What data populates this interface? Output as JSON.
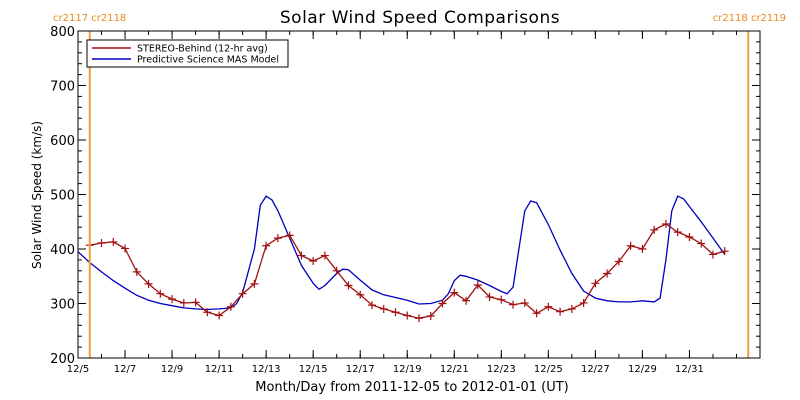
{
  "chart_data": {
    "type": "line",
    "title": "Solar Wind Speed Comparisons",
    "xlabel": "Month/Day from 2011-12-05 to 2012-01-01 (UT)",
    "ylabel": "Solar Wind Speed (km/s)",
    "ylim": [
      200,
      800
    ],
    "yticks": [
      200,
      300,
      400,
      500,
      600,
      700,
      800
    ],
    "xlim": [
      "2011-12-05",
      "2012-01-03"
    ],
    "xticks": [
      {
        "date": "2011-12-05",
        "label": "12/5"
      },
      {
        "date": "2011-12-07",
        "label": "12/7"
      },
      {
        "date": "2011-12-09",
        "label": "12/9"
      },
      {
        "date": "2011-12-11",
        "label": "12/11"
      },
      {
        "date": "2011-12-13",
        "label": "12/13"
      },
      {
        "date": "2011-12-15",
        "label": "12/15"
      },
      {
        "date": "2011-12-17",
        "label": "12/17"
      },
      {
        "date": "2011-12-19",
        "label": "12/19"
      },
      {
        "date": "2011-12-21",
        "label": "12/21"
      },
      {
        "date": "2011-12-23",
        "label": "12/23"
      },
      {
        "date": "2011-12-25",
        "label": "12/25"
      },
      {
        "date": "2011-12-27",
        "label": "12/27"
      },
      {
        "date": "2011-12-29",
        "label": "12/29"
      },
      {
        "date": "2011-12-31",
        "label": "12/31"
      }
    ],
    "grid": false,
    "legend_position": "top-left",
    "markers": [
      {
        "date": "2011-12-05 12:00",
        "label": "cr2117 cr2118",
        "label_side": "left",
        "color": "#f0a030"
      },
      {
        "date": "2012-01-02 12:00",
        "label": "cr2118 cr2119",
        "label_side": "right",
        "color": "#f0a030"
      }
    ],
    "series": [
      {
        "name": "STEREO-Behind (12-hr avg)",
        "color": "#a01010",
        "marker": "+",
        "points": [
          [
            "2011-12-05 12:00",
            407
          ],
          [
            "2011-12-06 00:00",
            411
          ],
          [
            "2011-12-06 12:00",
            413
          ],
          [
            "2011-12-07 00:00",
            401
          ],
          [
            "2011-12-07 12:00",
            358
          ],
          [
            "2011-12-08 00:00",
            336
          ],
          [
            "2011-12-08 12:00",
            318
          ],
          [
            "2011-12-09 00:00",
            308
          ],
          [
            "2011-12-09 12:00",
            301
          ],
          [
            "2011-12-10 00:00",
            302
          ],
          [
            "2011-12-10 12:00",
            284
          ],
          [
            "2011-12-11 00:00",
            278
          ],
          [
            "2011-12-11 12:00",
            294
          ],
          [
            "2011-12-12 00:00",
            318
          ],
          [
            "2011-12-12 12:00",
            336
          ],
          [
            "2011-12-13 00:00",
            406
          ],
          [
            "2011-12-13 12:00",
            420
          ],
          [
            "2011-12-14 00:00",
            425
          ],
          [
            "2011-12-14 12:00",
            388
          ],
          [
            "2011-12-15 00:00",
            378
          ],
          [
            "2011-12-15 12:00",
            388
          ],
          [
            "2011-12-16 00:00",
            360
          ],
          [
            "2011-12-16 12:00",
            333
          ],
          [
            "2011-12-17 00:00",
            316
          ],
          [
            "2011-12-17 12:00",
            297
          ],
          [
            "2011-12-18 00:00",
            290
          ],
          [
            "2011-12-18 12:00",
            284
          ],
          [
            "2011-12-19 00:00",
            278
          ],
          [
            "2011-12-19 12:00",
            273
          ],
          [
            "2011-12-20 00:00",
            277
          ],
          [
            "2011-12-20 12:00",
            300
          ],
          [
            "2011-12-21 00:00",
            320
          ],
          [
            "2011-12-21 12:00",
            305
          ],
          [
            "2011-12-22 00:00",
            334
          ],
          [
            "2011-12-22 12:00",
            312
          ],
          [
            "2011-12-23 00:00",
            307
          ],
          [
            "2011-12-23 12:00",
            298
          ],
          [
            "2011-12-24 00:00",
            301
          ],
          [
            "2011-12-24 12:00",
            282
          ],
          [
            "2011-12-25 00:00",
            294
          ],
          [
            "2011-12-25 12:00",
            285
          ],
          [
            "2011-12-26 00:00",
            290
          ],
          [
            "2011-12-26 12:00",
            301
          ],
          [
            "2011-12-27 00:00",
            337
          ],
          [
            "2011-12-27 12:00",
            355
          ],
          [
            "2011-12-28 00:00",
            377
          ],
          [
            "2011-12-28 12:00",
            406
          ],
          [
            "2011-12-29 00:00",
            400
          ],
          [
            "2011-12-29 12:00",
            435
          ],
          [
            "2011-12-30 00:00",
            446
          ],
          [
            "2011-12-30 12:00",
            431
          ],
          [
            "2011-12-31 00:00",
            422
          ],
          [
            "2011-12-31 12:00",
            410
          ],
          [
            "2012-01-01 00:00",
            390
          ],
          [
            "2012-01-01 12:00",
            396
          ]
        ]
      },
      {
        "name": "Predictive Science MAS Model",
        "color": "#0000c0",
        "marker": "none",
        "points": [
          [
            "2011-12-05 00:00",
            395
          ],
          [
            "2011-12-05 12:00",
            375
          ],
          [
            "2011-12-06 00:00",
            358
          ],
          [
            "2011-12-06 12:00",
            342
          ],
          [
            "2011-12-07 00:00",
            328
          ],
          [
            "2011-12-07 12:00",
            315
          ],
          [
            "2011-12-08 00:00",
            306
          ],
          [
            "2011-12-08 12:00",
            300
          ],
          [
            "2011-12-09 00:00",
            296
          ],
          [
            "2011-12-09 12:00",
            292
          ],
          [
            "2011-12-10 00:00",
            290
          ],
          [
            "2011-12-10 12:00",
            289
          ],
          [
            "2011-12-11 00:00",
            290
          ],
          [
            "2011-12-11 12:00",
            292
          ],
          [
            "2011-12-11 18:00",
            300
          ],
          [
            "2011-12-12 00:00",
            320
          ],
          [
            "2011-12-12 12:00",
            400
          ],
          [
            "2011-12-12 18:00",
            480
          ],
          [
            "2011-12-13 00:00",
            497
          ],
          [
            "2011-12-13 06:00",
            490
          ],
          [
            "2011-12-13 12:00",
            470
          ],
          [
            "2011-12-14 00:00",
            420
          ],
          [
            "2011-12-14 12:00",
            370
          ],
          [
            "2011-12-15 00:00",
            337
          ],
          [
            "2011-12-15 06:00",
            326
          ],
          [
            "2011-12-15 12:00",
            333
          ],
          [
            "2011-12-16 00:00",
            355
          ],
          [
            "2011-12-16 06:00",
            363
          ],
          [
            "2011-12-16 12:00",
            362
          ],
          [
            "2011-12-17 00:00",
            343
          ],
          [
            "2011-12-17 12:00",
            325
          ],
          [
            "2011-12-18 00:00",
            316
          ],
          [
            "2011-12-18 12:00",
            311
          ],
          [
            "2011-12-19 00:00",
            306
          ],
          [
            "2011-12-19 12:00",
            299
          ],
          [
            "2011-12-20 00:00",
            300
          ],
          [
            "2011-12-20 12:00",
            306
          ],
          [
            "2011-12-20 18:00",
            318
          ],
          [
            "2011-12-21 00:00",
            342
          ],
          [
            "2011-12-21 06:00",
            352
          ],
          [
            "2011-12-21 12:00",
            350
          ],
          [
            "2011-12-22 00:00",
            343
          ],
          [
            "2011-12-22 12:00",
            333
          ],
          [
            "2011-12-23 00:00",
            322
          ],
          [
            "2011-12-23 06:00",
            318
          ],
          [
            "2011-12-23 12:00",
            330
          ],
          [
            "2011-12-23 18:00",
            400
          ],
          [
            "2011-12-24 00:00",
            470
          ],
          [
            "2011-12-24 06:00",
            488
          ],
          [
            "2011-12-24 12:00",
            485
          ],
          [
            "2011-12-25 00:00",
            445
          ],
          [
            "2011-12-25 12:00",
            398
          ],
          [
            "2011-12-26 00:00",
            355
          ],
          [
            "2011-12-26 12:00",
            323
          ],
          [
            "2011-12-27 00:00",
            310
          ],
          [
            "2011-12-27 12:00",
            305
          ],
          [
            "2011-12-28 00:00",
            303
          ],
          [
            "2011-12-28 12:00",
            303
          ],
          [
            "2011-12-29 00:00",
            305
          ],
          [
            "2011-12-29 12:00",
            303
          ],
          [
            "2011-12-29 18:00",
            310
          ],
          [
            "2011-12-30 00:00",
            380
          ],
          [
            "2011-12-30 06:00",
            470
          ],
          [
            "2011-12-30 12:00",
            497
          ],
          [
            "2011-12-30 18:00",
            492
          ],
          [
            "2011-12-31 00:00",
            478
          ],
          [
            "2011-12-31 12:00",
            450
          ],
          [
            "2012-01-01 00:00",
            420
          ],
          [
            "2012-01-01 12:00",
            390
          ]
        ]
      }
    ]
  }
}
